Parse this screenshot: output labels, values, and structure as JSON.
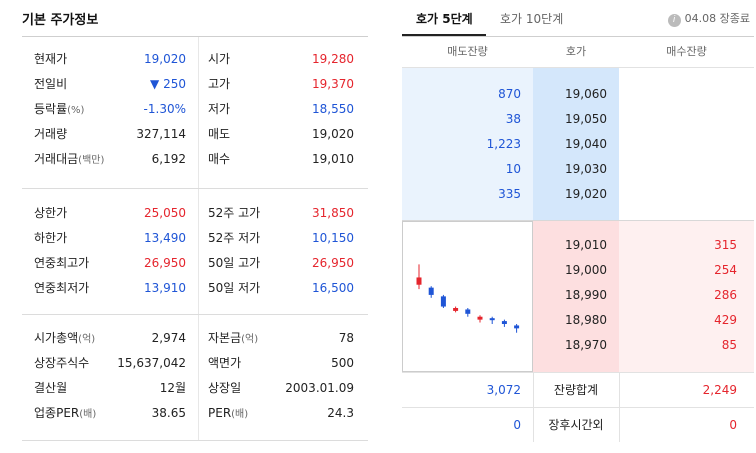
{
  "left": {
    "title": "기본 주가정보",
    "block1": [
      {
        "l1": "현재가",
        "l1s": "",
        "v1": "19,020",
        "c1": "blue",
        "l2": "시가",
        "l2s": "",
        "v2": "19,280",
        "c2": "red"
      },
      {
        "l1": "전일비",
        "l1s": "",
        "v1": "▼ 250",
        "c1": "blue",
        "l2": "고가",
        "l2s": "",
        "v2": "19,370",
        "c2": "red"
      },
      {
        "l1": "등락률",
        "l1s": "(%)",
        "v1": "-1.30%",
        "c1": "blue",
        "l2": "저가",
        "l2s": "",
        "v2": "18,550",
        "c2": "blue"
      },
      {
        "l1": "거래량",
        "l1s": "",
        "v1": "327,114",
        "c1": "dark",
        "l2": "매도",
        "l2s": "",
        "v2": "19,020",
        "c2": "dark"
      },
      {
        "l1": "거래대금",
        "l1s": "(백만)",
        "v1": "6,192",
        "c1": "dark",
        "l2": "매수",
        "l2s": "",
        "v2": "19,010",
        "c2": "dark"
      }
    ],
    "block2": [
      {
        "l1": "상한가",
        "l1s": "",
        "v1": "25,050",
        "c1": "red",
        "l2": "52주 고가",
        "l2s": "",
        "v2": "31,850",
        "c2": "red"
      },
      {
        "l1": "하한가",
        "l1s": "",
        "v1": "13,490",
        "c1": "blue",
        "l2": "52주 저가",
        "l2s": "",
        "v2": "10,150",
        "c2": "blue"
      },
      {
        "l1": "연중최고가",
        "l1s": "",
        "v1": "26,950",
        "c1": "red",
        "l2": "50일 고가",
        "l2s": "",
        "v2": "26,950",
        "c2": "red"
      },
      {
        "l1": "연중최저가",
        "l1s": "",
        "v1": "13,910",
        "c1": "blue",
        "l2": "50일 저가",
        "l2s": "",
        "v2": "16,500",
        "c2": "blue"
      }
    ],
    "block3": [
      {
        "l1": "시가총액",
        "l1s": "(억)",
        "v1": "2,974",
        "c1": "dark",
        "l2": "자본금",
        "l2s": "(억)",
        "v2": "78",
        "c2": "dark"
      },
      {
        "l1": "상장주식수",
        "l1s": "",
        "v1": "15,637,042",
        "c1": "dark",
        "l2": "액면가",
        "l2s": "",
        "v2": "500",
        "c2": "dark"
      },
      {
        "l1": "결산월",
        "l1s": "",
        "v1": "12월",
        "c1": "dark",
        "l2": "상장일",
        "l2s": "",
        "v2": "2003.01.09",
        "c2": "dark"
      },
      {
        "l1": "업종PER",
        "l1s": "(배)",
        "v1": "38.65",
        "c1": "dark",
        "l2": "PER",
        "l2s": "(배)",
        "v2": "24.3",
        "c2": "dark"
      }
    ]
  },
  "right": {
    "tab_active": "호가 5단계",
    "tab_inactive": "호가 10단계",
    "info_glyph": "i",
    "time": "04.08 장종료",
    "headers": {
      "ask_qty": "매도잔량",
      "price": "호가",
      "bid_qty": "매수잔량"
    },
    "asks": [
      {
        "qty": "870",
        "price": "19,060"
      },
      {
        "qty": "38",
        "price": "19,050"
      },
      {
        "qty": "1,223",
        "price": "19,040"
      },
      {
        "qty": "10",
        "price": "19,030"
      },
      {
        "qty": "335",
        "price": "19,020"
      }
    ],
    "bids": [
      {
        "price": "19,010",
        "qty": "315"
      },
      {
        "price": "19,000",
        "qty": "254"
      },
      {
        "price": "18,990",
        "qty": "286"
      },
      {
        "price": "18,980",
        "qty": "429"
      },
      {
        "price": "18,970",
        "qty": "85"
      }
    ],
    "total": {
      "ask": "3,072",
      "label": "잔량합계",
      "bid": "2,249"
    },
    "after": {
      "ask": "0",
      "label": "장후시간외",
      "bid": "0"
    }
  },
  "colors": {
    "red": "#e5252d",
    "blue": "#1f55d6",
    "ask_bg": "#d4e7fb",
    "bid_bg": "#fddfe0"
  },
  "mini_chart": {
    "type": "candlestick",
    "candles": [
      {
        "o": 19280,
        "c": 19230,
        "h": 19370,
        "l": 19200,
        "dir": "down",
        "color": "red"
      },
      {
        "o": 19210,
        "c": 19160,
        "h": 19220,
        "l": 19140,
        "dir": "down",
        "color": "blue"
      },
      {
        "o": 19150,
        "c": 19080,
        "h": 19160,
        "l": 19070,
        "dir": "down",
        "color": "blue"
      },
      {
        "o": 19070,
        "c": 19050,
        "h": 19080,
        "l": 19040,
        "dir": "up",
        "color": "red"
      },
      {
        "o": 19060,
        "c": 19030,
        "h": 19070,
        "l": 19010,
        "dir": "down",
        "color": "blue"
      },
      {
        "o": 19010,
        "c": 18990,
        "h": 19020,
        "l": 18970,
        "dir": "up",
        "color": "red"
      },
      {
        "o": 19000,
        "c": 18990,
        "h": 19010,
        "l": 18960,
        "dir": "down",
        "color": "blue"
      },
      {
        "o": 18980,
        "c": 18960,
        "h": 18990,
        "l": 18940,
        "dir": "down",
        "color": "blue"
      },
      {
        "o": 18950,
        "c": 18930,
        "h": 18960,
        "l": 18900,
        "dir": "down",
        "color": "blue"
      }
    ],
    "ymin": 18850,
    "ymax": 19400
  }
}
